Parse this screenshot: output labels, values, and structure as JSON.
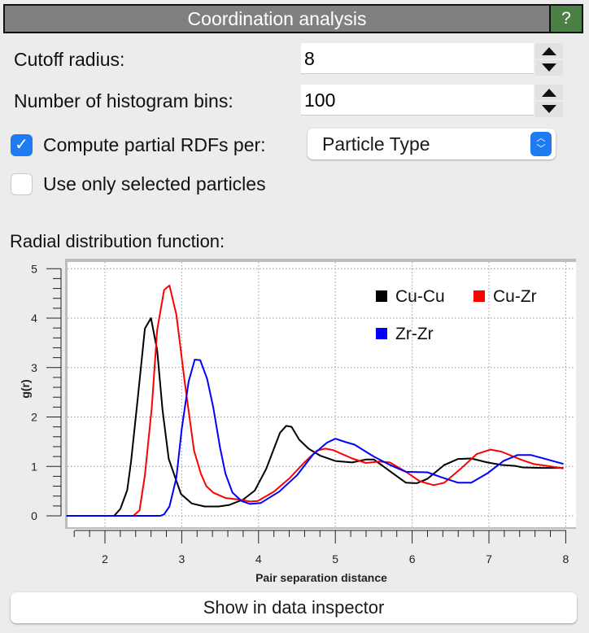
{
  "header": {
    "title": "Coordination analysis",
    "help_label": "?"
  },
  "params": {
    "cutoff_label": "Cutoff radius:",
    "cutoff_value": "8",
    "bins_label": "Number of histogram bins:",
    "bins_value": "100",
    "partial_label": "Compute partial RDFs per:",
    "partial_checked": true,
    "partial_mode": "Particle Type",
    "selected_label": "Use only selected particles",
    "selected_checked": false
  },
  "section_title": "Radial distribution function:",
  "inspector_button": "Show in data inspector",
  "chart_data": {
    "type": "line",
    "xlabel": "Pair separation distance",
    "ylabel": "g(r)",
    "xlim": [
      1.5,
      8.1
    ],
    "ylim": [
      0,
      5
    ],
    "xticks": [
      2,
      3,
      4,
      5,
      6,
      7,
      8
    ],
    "yticks": [
      0,
      1,
      2,
      3,
      4,
      5
    ],
    "grid": true,
    "legend_position": "top-right",
    "series": [
      {
        "name": "Cu-Cu",
        "color": "#000000",
        "x": [
          1.5,
          2.12,
          2.2,
          2.29,
          2.34,
          2.43,
          2.52,
          2.6,
          2.68,
          2.75,
          2.83,
          2.99,
          3.13,
          3.3,
          3.48,
          3.62,
          3.8,
          3.95,
          4.1,
          4.28,
          4.36,
          4.43,
          4.53,
          4.65,
          4.8,
          5.0,
          5.22,
          5.4,
          5.5,
          5.6,
          5.75,
          5.92,
          6.06,
          6.2,
          6.42,
          6.6,
          6.77,
          6.98,
          7.16,
          7.34,
          7.44,
          7.69,
          7.97
        ],
        "y": [
          0,
          0,
          0.14,
          0.52,
          1.1,
          2.42,
          3.79,
          4.0,
          3.35,
          2.14,
          1.15,
          0.44,
          0.25,
          0.19,
          0.19,
          0.22,
          0.33,
          0.51,
          0.95,
          1.68,
          1.82,
          1.8,
          1.54,
          1.36,
          1.22,
          1.11,
          1.08,
          1.14,
          1.14,
          1.03,
          0.86,
          0.67,
          0.66,
          0.75,
          1.03,
          1.15,
          1.16,
          1.08,
          1.03,
          1.01,
          0.98,
          0.97,
          0.97
        ]
      },
      {
        "name": "Cu-Zr",
        "color": "#ff0000",
        "x": [
          1.5,
          2.37,
          2.45,
          2.52,
          2.61,
          2.68,
          2.77,
          2.84,
          2.93,
          3.04,
          3.16,
          3.25,
          3.32,
          3.41,
          3.57,
          3.75,
          3.89,
          3.99,
          4.2,
          4.41,
          4.59,
          4.76,
          4.87,
          4.97,
          5.22,
          5.4,
          5.57,
          5.71,
          5.92,
          6.1,
          6.28,
          6.42,
          6.63,
          6.84,
          7.02,
          7.16,
          7.41,
          7.58,
          7.76,
          7.97
        ],
        "y": [
          0,
          0,
          0.11,
          0.82,
          2.2,
          3.76,
          4.57,
          4.66,
          4.07,
          2.69,
          1.32,
          0.85,
          0.6,
          0.47,
          0.36,
          0.33,
          0.29,
          0.3,
          0.49,
          0.77,
          1.07,
          1.32,
          1.36,
          1.33,
          1.16,
          1.07,
          1.1,
          1.08,
          0.89,
          0.7,
          0.62,
          0.67,
          0.95,
          1.25,
          1.34,
          1.3,
          1.14,
          1.05,
          1.01,
          0.96
        ]
      },
      {
        "name": "Zr-Zr",
        "color": "#0000ff",
        "x": [
          1.5,
          2.72,
          2.77,
          2.84,
          2.93,
          3.0,
          3.09,
          3.17,
          3.24,
          3.33,
          3.41,
          3.5,
          3.57,
          3.66,
          3.78,
          3.89,
          4.03,
          4.27,
          4.5,
          4.71,
          4.89,
          5.0,
          5.14,
          5.25,
          5.5,
          5.71,
          5.92,
          6.2,
          6.38,
          6.6,
          6.77,
          6.98,
          7.19,
          7.37,
          7.55,
          7.76,
          7.97
        ],
        "y": [
          0,
          0,
          0.03,
          0.19,
          0.77,
          1.76,
          2.72,
          3.16,
          3.15,
          2.77,
          2.2,
          1.37,
          0.85,
          0.47,
          0.3,
          0.24,
          0.26,
          0.49,
          0.82,
          1.24,
          1.48,
          1.56,
          1.49,
          1.44,
          1.2,
          1.03,
          0.89,
          0.88,
          0.78,
          0.67,
          0.67,
          0.86,
          1.11,
          1.23,
          1.23,
          1.14,
          1.05
        ]
      }
    ]
  }
}
